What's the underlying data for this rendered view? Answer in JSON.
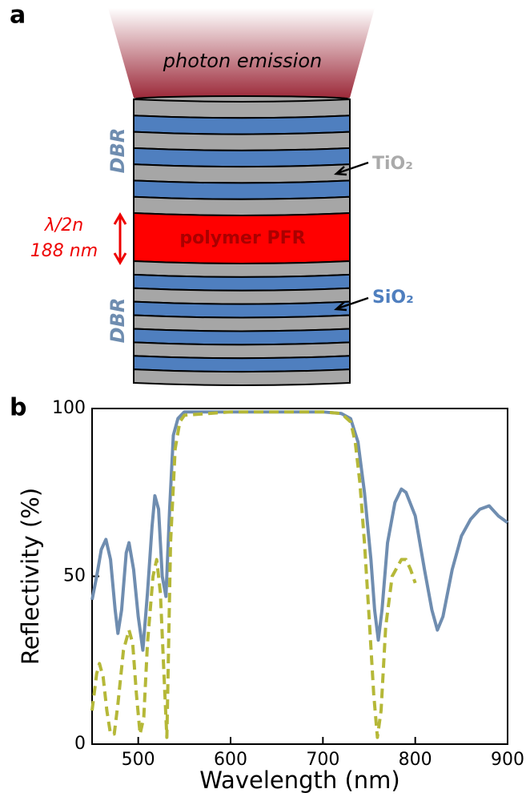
{
  "panel_a": {
    "label": "a",
    "emission": "photon emission",
    "dbr_top": "DBR",
    "dbr_bottom": "DBR",
    "tio2": "TiO₂",
    "sio2": "SiO₂",
    "cavity": "polymer PFR",
    "thickness_formula": "λ/2n",
    "thickness": "188 nm"
  },
  "chart_data": {
    "type": "line",
    "panel_label": "b",
    "xlabel": "Wavelength (nm)",
    "ylabel": "Reflectivity (%)",
    "xlim": [
      450,
      900
    ],
    "xticks": [
      500,
      600,
      700,
      800,
      900
    ],
    "ylim": [
      0,
      100
    ],
    "yticks": [
      0,
      50,
      100
    ],
    "series": [
      {
        "color": "#6f8db0",
        "dash": false,
        "x": [
          450,
          455,
          460,
          465,
          470,
          475,
          478,
          482,
          487,
          490,
          495,
          500,
          505,
          510,
          515,
          518,
          522,
          526,
          530,
          534,
          538,
          543,
          550,
          600,
          650,
          700,
          720,
          730,
          738,
          745,
          752,
          756,
          760,
          764,
          770,
          778,
          785,
          790,
          800,
          810,
          818,
          824,
          830,
          840,
          850,
          860,
          870,
          880,
          890,
          900
        ],
        "values": [
          43,
          50,
          58,
          61,
          55,
          40,
          33,
          40,
          57,
          60,
          52,
          38,
          28,
          45,
          65,
          74,
          70,
          50,
          44,
          70,
          92,
          97,
          99,
          99,
          99,
          99,
          98.5,
          97,
          90,
          75,
          55,
          40,
          31,
          40,
          60,
          72,
          76,
          75,
          68,
          52,
          40,
          34,
          38,
          52,
          62,
          67,
          70,
          71,
          68,
          66
        ]
      },
      {
        "color": "#b5b838",
        "dash": true,
        "x": [
          450,
          455,
          458,
          462,
          466,
          470,
          474,
          478,
          484,
          490,
          494,
          498,
          502,
          506,
          510,
          516,
          520,
          524,
          528,
          531,
          535,
          540,
          545,
          550,
          600,
          700,
          720,
          730,
          735,
          740,
          745,
          750,
          755,
          759,
          763,
          768,
          775,
          785,
          790,
          795,
          800
        ],
        "values": [
          10,
          21,
          24,
          20,
          10,
          3,
          3,
          12,
          28,
          34,
          30,
          15,
          3,
          8,
          30,
          50,
          55,
          45,
          20,
          2,
          60,
          88,
          96,
          98,
          99,
          99,
          98.5,
          96,
          90,
          78,
          60,
          38,
          15,
          2,
          10,
          35,
          50,
          55,
          55,
          52,
          48
        ]
      }
    ]
  }
}
